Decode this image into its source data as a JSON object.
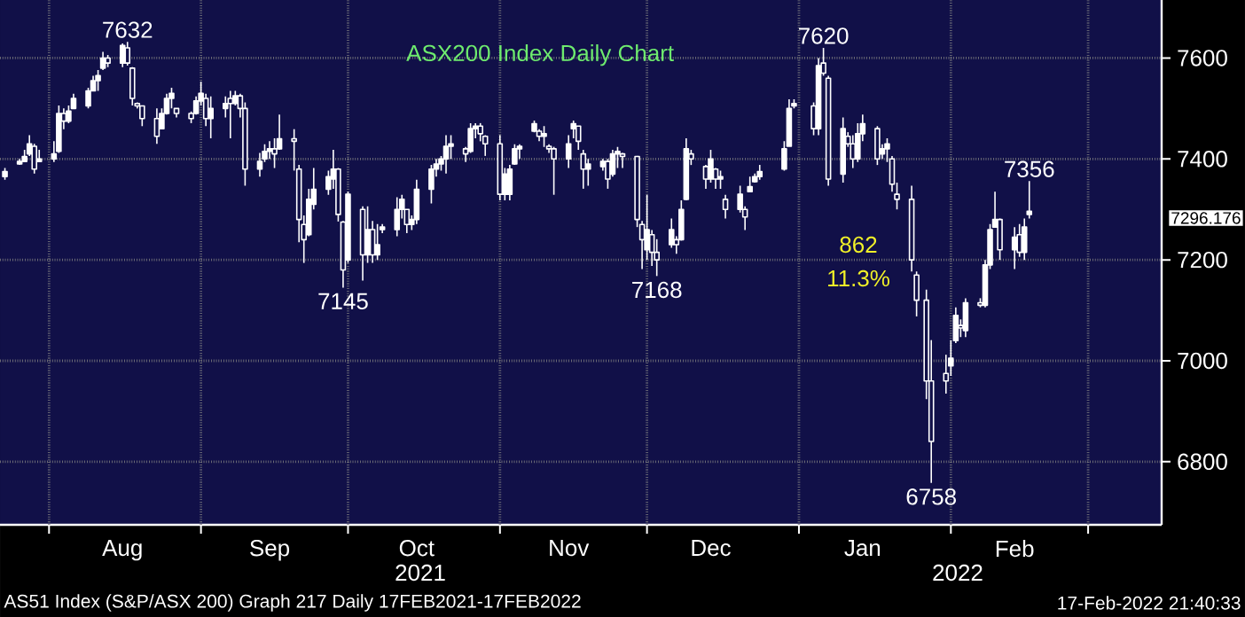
{
  "chart_data": {
    "type": "candlestick",
    "title": "ASX200 Index Daily Chart",
    "color": "#ffffff",
    "grid": true,
    "x": [
      "2021-07-23",
      "2021-07-26",
      "2021-07-27",
      "2021-07-28",
      "2021-07-29",
      "2021-07-30",
      "2021-08-02",
      "2021-08-03",
      "2021-08-04",
      "2021-08-05",
      "2021-08-06",
      "2021-08-09",
      "2021-08-10",
      "2021-08-11",
      "2021-08-12",
      "2021-08-13",
      "2021-08-16",
      "2021-08-17",
      "2021-08-18",
      "2021-08-19",
      "2021-08-20",
      "2021-08-23",
      "2021-08-24",
      "2021-08-25",
      "2021-08-26",
      "2021-08-27",
      "2021-08-30",
      "2021-08-31",
      "2021-09-01",
      "2021-09-02",
      "2021-09-03",
      "2021-09-06",
      "2021-09-07",
      "2021-09-08",
      "2021-09-09",
      "2021-09-10",
      "2021-09-13",
      "2021-09-14",
      "2021-09-15",
      "2021-09-16",
      "2021-09-17",
      "2021-09-20",
      "2021-09-21",
      "2021-09-22",
      "2021-09-23",
      "2021-09-24",
      "2021-09-27",
      "2021-09-28",
      "2021-09-29",
      "2021-09-30",
      "2021-10-01",
      "2021-10-04",
      "2021-10-05",
      "2021-10-06",
      "2021-10-07",
      "2021-10-08",
      "2021-10-11",
      "2021-10-12",
      "2021-10-13",
      "2021-10-14",
      "2021-10-15",
      "2021-10-18",
      "2021-10-19",
      "2021-10-20",
      "2021-10-21",
      "2021-10-22",
      "2021-10-25",
      "2021-10-26",
      "2021-10-27",
      "2021-10-28",
      "2021-10-29",
      "2021-11-01",
      "2021-11-02",
      "2021-11-03",
      "2021-11-04",
      "2021-11-05",
      "2021-11-08",
      "2021-11-09",
      "2021-11-10",
      "2021-11-11",
      "2021-11-12",
      "2021-11-15",
      "2021-11-16",
      "2021-11-17",
      "2021-11-18",
      "2021-11-19",
      "2021-11-22",
      "2021-11-23",
      "2021-11-24",
      "2021-11-25",
      "2021-11-26",
      "2021-11-29",
      "2021-11-30",
      "2021-12-01",
      "2021-12-02",
      "2021-12-03",
      "2021-12-06",
      "2021-12-07",
      "2021-12-08",
      "2021-12-09",
      "2021-12-10",
      "2021-12-13",
      "2021-12-14",
      "2021-12-15",
      "2021-12-16",
      "2021-12-17",
      "2021-12-20",
      "2021-12-21",
      "2021-12-22",
      "2021-12-23",
      "2021-12-24",
      "2021-12-29",
      "2021-12-30",
      "2021-12-31",
      "2022-01-04",
      "2022-01-05",
      "2022-01-06",
      "2022-01-07",
      "2022-01-10",
      "2022-01-11",
      "2022-01-12",
      "2022-01-13",
      "2022-01-14",
      "2022-01-17",
      "2022-01-18",
      "2022-01-19",
      "2022-01-20",
      "2022-01-21",
      "2022-01-24",
      "2022-01-25",
      "2022-01-27",
      "2022-01-28",
      "2022-01-31",
      "2022-02-01",
      "2022-02-02",
      "2022-02-03",
      "2022-02-04",
      "2022-02-07",
      "2022-02-08",
      "2022-02-09",
      "2022-02-10",
      "2022-02-11",
      "2022-02-14",
      "2022-02-15",
      "2022-02-16",
      "2022-02-17"
    ],
    "ohlc": [
      [
        7365,
        7382,
        7359,
        7375
      ],
      [
        7390,
        7400,
        7388,
        7395
      ],
      [
        7395,
        7418,
        7394,
        7405
      ],
      [
        7410,
        7447,
        7406,
        7430
      ],
      [
        7425,
        7430,
        7371,
        7380
      ],
      [
        7395,
        7418,
        7394,
        7400
      ],
      [
        7400,
        7435,
        7394,
        7410
      ],
      [
        7415,
        7506,
        7412,
        7490
      ],
      [
        7490,
        7500,
        7459,
        7475
      ],
      [
        7475,
        7506,
        7471,
        7495
      ],
      [
        7500,
        7529,
        7500,
        7520
      ],
      [
        7505,
        7541,
        7500,
        7535
      ],
      [
        7535,
        7565,
        7535,
        7555
      ],
      [
        7555,
        7576,
        7535,
        7565
      ],
      [
        7580,
        7612,
        7576,
        7600
      ],
      [
        7600,
        7606,
        7582,
        7590
      ],
      [
        7590,
        7629,
        7582,
        7625
      ],
      [
        7620,
        7632,
        7585,
        7590
      ],
      [
        7580,
        7582,
        7506,
        7520
      ],
      [
        7510,
        7512,
        7500,
        7505
      ],
      [
        7505,
        7506,
        7465,
        7480
      ],
      [
        7480,
        7500,
        7430,
        7445
      ],
      [
        7460,
        7500,
        7459,
        7490
      ],
      [
        7490,
        7529,
        7488,
        7520
      ],
      [
        7520,
        7541,
        7500,
        7530
      ],
      [
        7500,
        7500,
        7482,
        7490
      ],
      [
        7490,
        7494,
        7471,
        7480
      ],
      [
        7490,
        7524,
        7488,
        7515
      ],
      [
        7515,
        7553,
        7506,
        7530
      ],
      [
        7520,
        7529,
        7465,
        7480
      ],
      [
        7480,
        7524,
        7441,
        7500
      ],
      [
        7500,
        7524,
        7482,
        7510
      ],
      [
        7520,
        7535,
        7441,
        7510
      ],
      [
        7510,
        7535,
        7506,
        7525
      ],
      [
        7525,
        7529,
        7482,
        7500
      ],
      [
        7500,
        7512,
        7347,
        7380
      ],
      [
        7380,
        7412,
        7365,
        7395
      ],
      [
        7400,
        7429,
        7394,
        7415
      ],
      [
        7415,
        7435,
        7400,
        7420
      ],
      [
        7420,
        7441,
        7382,
        7410
      ],
      [
        7420,
        7488,
        7418,
        7440
      ],
      [
        7440,
        7459,
        7377,
        7435
      ],
      [
        7380,
        7388,
        7235,
        7280
      ],
      [
        7270,
        7288,
        7194,
        7240
      ],
      [
        7250,
        7341,
        7247,
        7320
      ],
      [
        7310,
        7382,
        7300,
        7340
      ],
      [
        7340,
        7377,
        7329,
        7365
      ],
      [
        7360,
        7418,
        7341,
        7380
      ],
      [
        7380,
        7382,
        7276,
        7290
      ],
      [
        7275,
        7277,
        7145,
        7180
      ],
      [
        7200,
        7335,
        7194,
        7330
      ],
      [
        7300,
        7306,
        7159,
        7210
      ],
      [
        7210,
        7306,
        7194,
        7260
      ],
      [
        7260,
        7277,
        7194,
        7210
      ],
      [
        7210,
        7271,
        7200,
        7230
      ],
      [
        7260,
        7271,
        7253,
        7265
      ],
      [
        7260,
        7324,
        7247,
        7300
      ],
      [
        7300,
        7329,
        7282,
        7320
      ],
      [
        7300,
        7300,
        7253,
        7270
      ],
      [
        7270,
        7288,
        7259,
        7280
      ],
      [
        7280,
        7359,
        7271,
        7340
      ],
      [
        7340,
        7388,
        7312,
        7380
      ],
      [
        7380,
        7400,
        7365,
        7390
      ],
      [
        7390,
        7406,
        7377,
        7400
      ],
      [
        7400,
        7447,
        7371,
        7425
      ],
      [
        7425,
        7447,
        7400,
        7430
      ],
      [
        7420,
        7424,
        7394,
        7410
      ],
      [
        7415,
        7471,
        7412,
        7460
      ],
      [
        7460,
        7471,
        7441,
        7465
      ],
      [
        7465,
        7471,
        7435,
        7450
      ],
      [
        7445,
        7447,
        7406,
        7430
      ],
      [
        7430,
        7447,
        7318,
        7330
      ],
      [
        7330,
        7382,
        7318,
        7370
      ],
      [
        7330,
        7388,
        7318,
        7380
      ],
      [
        7390,
        7429,
        7388,
        7420
      ],
      [
        7420,
        7429,
        7400,
        7425
      ],
      [
        7455,
        7476,
        7453,
        7470
      ],
      [
        7455,
        7459,
        7435,
        7445
      ],
      [
        7445,
        7465,
        7424,
        7450
      ],
      [
        7425,
        7429,
        7412,
        7420
      ],
      [
        7420,
        7424,
        7329,
        7400
      ],
      [
        7400,
        7447,
        7382,
        7430
      ],
      [
        7460,
        7476,
        7441,
        7470
      ],
      [
        7465,
        7465,
        7418,
        7435
      ],
      [
        7410,
        7418,
        7341,
        7380
      ],
      [
        7380,
        7400,
        7347,
        7390
      ],
      [
        7385,
        7400,
        7377,
        7395
      ],
      [
        7395,
        7400,
        7341,
        7360
      ],
      [
        7370,
        7418,
        7365,
        7410
      ],
      [
        7410,
        7424,
        7382,
        7415
      ],
      [
        7410,
        7412,
        7382,
        7405
      ],
      [
        7405,
        7406,
        7265,
        7280
      ],
      [
        7270,
        7277,
        7182,
        7240
      ],
      [
        7220,
        7329,
        7200,
        7260
      ],
      [
        7250,
        7259,
        7188,
        7215
      ],
      [
        7215,
        7241,
        7168,
        7200
      ],
      [
        7230,
        7282,
        7224,
        7260
      ],
      [
        7240,
        7247,
        7212,
        7230
      ],
      [
        7240,
        7318,
        7238,
        7300
      ],
      [
        7320,
        7441,
        7318,
        7420
      ],
      [
        7410,
        7418,
        7388,
        7400
      ],
      [
        7385,
        7388,
        7341,
        7360
      ],
      [
        7360,
        7418,
        7353,
        7400
      ],
      [
        7380,
        7382,
        7341,
        7360
      ],
      [
        7360,
        7377,
        7341,
        7365
      ],
      [
        7320,
        7329,
        7282,
        7300
      ],
      [
        7300,
        7347,
        7294,
        7330
      ],
      [
        7300,
        7306,
        7259,
        7285
      ],
      [
        7335,
        7365,
        7335,
        7345
      ],
      [
        7355,
        7371,
        7353,
        7365
      ],
      [
        7365,
        7388,
        7359,
        7375
      ],
      [
        7380,
        7435,
        7377,
        7420
      ],
      [
        7425,
        7518,
        7424,
        7500
      ],
      [
        7505,
        7518,
        7500,
        7510
      ],
      [
        7505,
        7512,
        7447,
        7460
      ],
      [
        7460,
        7600,
        7447,
        7585
      ],
      [
        7590,
        7620,
        7565,
        7570
      ],
      [
        7560,
        7565,
        7347,
        7360
      ],
      [
        7370,
        7482,
        7353,
        7460
      ],
      [
        7445,
        7453,
        7424,
        7430
      ],
      [
        7430,
        7447,
        7382,
        7400
      ],
      [
        7400,
        7471,
        7394,
        7450
      ],
      [
        7450,
        7488,
        7435,
        7470
      ],
      [
        7460,
        7465,
        7388,
        7400
      ],
      [
        7410,
        7429,
        7400,
        7420
      ],
      [
        7420,
        7441,
        7394,
        7430
      ],
      [
        7400,
        7406,
        7335,
        7350
      ],
      [
        7330,
        7353,
        7300,
        7320
      ],
      [
        7320,
        7347,
        7177,
        7200
      ],
      [
        7170,
        7177,
        7088,
        7120
      ],
      [
        7120,
        7141,
        6924,
        6960
      ],
      [
        6960,
        7041,
        6758,
        6840
      ],
      [
        6975,
        7012,
        6935,
        6960
      ],
      [
        6990,
        7041,
        6970,
        7005
      ],
      [
        7040,
        7106,
        7035,
        7090
      ],
      [
        7070,
        7082,
        7047,
        7065
      ],
      [
        7060,
        7124,
        7047,
        7115
      ],
      [
        7115,
        7124,
        7106,
        7110
      ],
      [
        7110,
        7200,
        7106,
        7190
      ],
      [
        7190,
        7271,
        7182,
        7260
      ],
      [
        7265,
        7335,
        7265,
        7280
      ],
      [
        7280,
        7282,
        7200,
        7220
      ],
      [
        7220,
        7265,
        7182,
        7245
      ],
      [
        7250,
        7271,
        7206,
        7215
      ],
      [
        7215,
        7282,
        7200,
        7265
      ],
      [
        7290,
        7356,
        7282,
        7296.176
      ]
    ],
    "xlim": [
      "2021-07-22",
      "2022-03-16"
    ],
    "ylim": [
      6675,
      7715
    ],
    "xticks": [
      {
        "value": "2021-08-01",
        "label": null
      },
      {
        "value": "2021-09-01",
        "label": null
      },
      {
        "value": "2021-10-01",
        "label": null
      },
      {
        "value": "2021-11-01",
        "label": null
      },
      {
        "value": "2021-12-01",
        "label": null
      },
      {
        "value": "2022-01-01",
        "label": null
      },
      {
        "value": "2022-02-01",
        "label": null
      },
      {
        "value": "2022-03-01",
        "label": null
      },
      {
        "value": "2021-08-16",
        "label": "Aug"
      },
      {
        "value": "2021-09-15",
        "label": "Sep"
      },
      {
        "value": "2021-10-15",
        "label": "Oct"
      },
      {
        "value": "2021-11-15",
        "label": "Nov"
      },
      {
        "value": "2021-12-14",
        "label": "Dec"
      },
      {
        "value": "2022-01-14",
        "label": "Jan"
      },
      {
        "value": "2022-02-14",
        "label": "Feb"
      }
    ],
    "yticks": [
      6800,
      7000,
      7200,
      7400,
      7600
    ],
    "annotations": [
      {
        "text": "7632",
        "x": "2021-08-17",
        "y": 7632
      },
      {
        "text": "7145",
        "x": "2021-09-30",
        "y": 7145
      },
      {
        "text": "7168",
        "x": "2021-12-03",
        "y": 7168
      },
      {
        "text": "7620",
        "x": "2022-01-06",
        "y": 7620
      },
      {
        "text": "6758",
        "x": "2022-01-28",
        "y": 6758
      },
      {
        "text": "7356",
        "x": "2022-02-17",
        "y": 7356
      },
      "7296.176",
      "862",
      "11.3%",
      "2021",
      "2022",
      "AS51 Index (S&P/ASX 200) Graph 217  Daily 17FEB2021-17FEB2022",
      "17-Feb-2022 21:40:33"
    ]
  }
}
